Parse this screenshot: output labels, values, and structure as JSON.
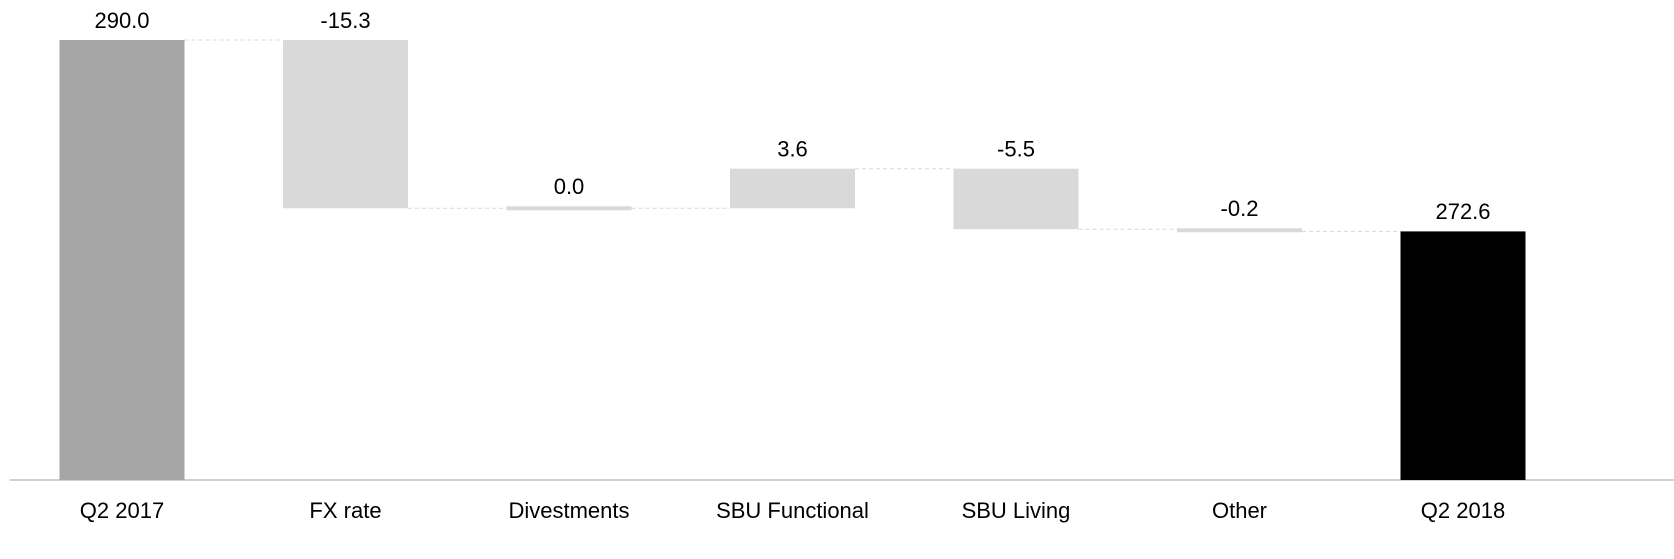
{
  "chart_data": {
    "type": "waterfall",
    "categories": [
      "Q2 2017",
      "FX rate",
      "Divestments",
      "SBU Functional",
      "SBU Living",
      "Other",
      "Q2 2018"
    ],
    "values": [
      290.0,
      -15.3,
      0.0,
      3.6,
      -5.5,
      -0.2,
      272.6
    ],
    "value_labels": [
      "290.0",
      "-15.3",
      "0.0",
      "3.6",
      "-5.5",
      "-0.2",
      "272.6"
    ],
    "measure": [
      "absolute",
      "relative",
      "relative",
      "relative",
      "relative",
      "relative",
      "total"
    ],
    "colors": {
      "absolute": "#a6a6a6",
      "relative": "#d9d9d9",
      "total": "#000000"
    },
    "ylim": [
      250,
      290
    ]
  }
}
